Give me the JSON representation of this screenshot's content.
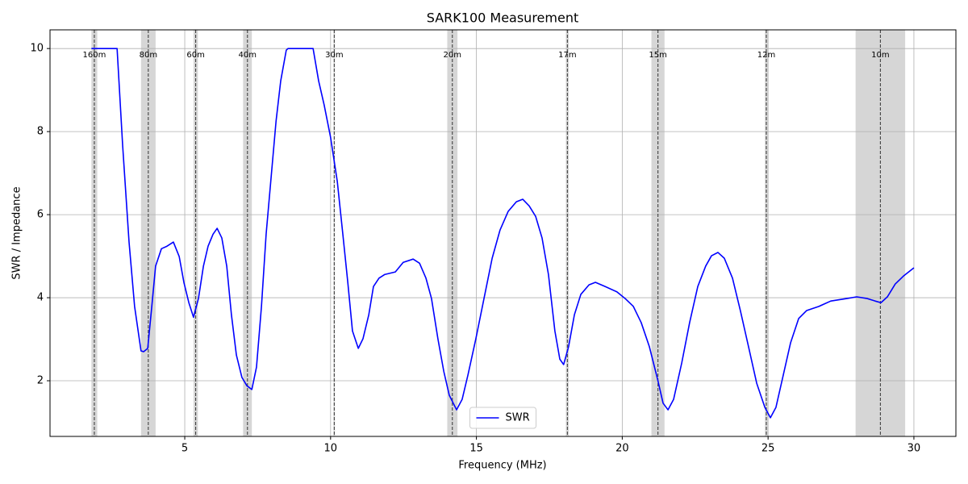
{
  "chart_data": {
    "type": "line",
    "title": "SARK100 Measurement",
    "x_label": "Frequency (MHz)",
    "y_label": "SWR / Impedance",
    "xlim": [
      0.38,
      31.44
    ],
    "ylim": [
      0.66,
      10.45
    ],
    "xticks": [
      5,
      10,
      15,
      20,
      25,
      30
    ],
    "yticks": [
      2,
      4,
      6,
      8,
      10
    ],
    "grid": true,
    "legend": "lower center",
    "bands": [
      {
        "name": "160m",
        "lo": 1.8,
        "hi": 2.0
      },
      {
        "name": "80m",
        "lo": 3.5,
        "hi": 4.0
      },
      {
        "name": "60m",
        "lo": 5.3,
        "hi": 5.45
      },
      {
        "name": "40m",
        "lo": 7.0,
        "hi": 7.3
      },
      {
        "name": "30m",
        "lo": 10.1,
        "hi": 10.15
      },
      {
        "name": "20m",
        "lo": 14.0,
        "hi": 14.35
      },
      {
        "name": "17m",
        "lo": 18.068,
        "hi": 18.168
      },
      {
        "name": "15m",
        "lo": 21.0,
        "hi": 21.45
      },
      {
        "name": "12m",
        "lo": 24.89,
        "hi": 24.99
      },
      {
        "name": "10m",
        "lo": 28.0,
        "hi": 29.7
      }
    ],
    "x": [
      1.8,
      2.68,
      2.87,
      3.09,
      3.28,
      3.5,
      3.59,
      3.73,
      3.87,
      4.0,
      4.2,
      4.39,
      4.61,
      4.81,
      4.97,
      5.14,
      5.3,
      5.47,
      5.64,
      5.8,
      5.97,
      6.11,
      6.27,
      6.44,
      6.6,
      6.77,
      6.96,
      7.13,
      7.3,
      7.46,
      7.63,
      7.79,
      7.96,
      8.13,
      8.29,
      8.48,
      8.54,
      9.4,
      9.59,
      9.78,
      10.0,
      10.23,
      10.42,
      10.59,
      10.75,
      10.95,
      11.11,
      11.31,
      11.47,
      11.66,
      11.86,
      12.22,
      12.49,
      12.83,
      13.05,
      13.27,
      13.46,
      13.68,
      13.88,
      14.07,
      14.32,
      14.51,
      14.71,
      14.98,
      15.26,
      15.54,
      15.81,
      16.09,
      16.37,
      16.59,
      16.81,
      17.03,
      17.25,
      17.47,
      17.69,
      17.86,
      17.99,
      18.16,
      18.36,
      18.58,
      18.86,
      19.08,
      19.41,
      19.82,
      20.1,
      20.38,
      20.65,
      20.93,
      21.21,
      21.4,
      21.57,
      21.76,
      22.04,
      22.31,
      22.59,
      22.86,
      23.06,
      23.28,
      23.5,
      23.78,
      24.05,
      24.33,
      24.61,
      24.89,
      25.08,
      25.27,
      25.49,
      25.77,
      26.05,
      26.32,
      26.74,
      27.15,
      27.7,
      28.04,
      28.4,
      28.67,
      28.87,
      29.09,
      29.36,
      29.64,
      30.0
    ],
    "series": [
      {
        "name": "SWR",
        "color": "#0000ff",
        "values": [
          10,
          10,
          7.67,
          5.34,
          3.79,
          2.72,
          2.7,
          2.78,
          3.79,
          4.76,
          5.18,
          5.24,
          5.34,
          4.99,
          4.37,
          3.88,
          3.53,
          3.98,
          4.76,
          5.24,
          5.53,
          5.67,
          5.44,
          4.76,
          3.59,
          2.62,
          2.08,
          1.88,
          1.79,
          2.33,
          3.79,
          5.53,
          6.89,
          8.25,
          9.22,
          9.96,
          10,
          10,
          9.22,
          8.64,
          7.86,
          6.8,
          5.53,
          4.37,
          3.2,
          2.78,
          3.01,
          3.59,
          4.27,
          4.47,
          4.56,
          4.62,
          4.85,
          4.93,
          4.83,
          4.47,
          3.98,
          3.01,
          2.23,
          1.65,
          1.3,
          1.55,
          2.14,
          3.01,
          3.98,
          4.95,
          5.63,
          6.08,
          6.31,
          6.37,
          6.21,
          5.96,
          5.44,
          4.56,
          3.2,
          2.52,
          2.39,
          2.82,
          3.59,
          4.08,
          4.31,
          4.37,
          4.27,
          4.14,
          3.98,
          3.79,
          3.4,
          2.82,
          2.04,
          1.46,
          1.3,
          1.55,
          2.43,
          3.4,
          4.27,
          4.76,
          5.01,
          5.09,
          4.95,
          4.47,
          3.69,
          2.82,
          1.94,
          1.36,
          1.11,
          1.36,
          2.04,
          2.91,
          3.5,
          3.69,
          3.79,
          3.92,
          3.98,
          4.02,
          3.98,
          3.92,
          3.88,
          4.02,
          4.33,
          4.52,
          4.72
        ]
      }
    ]
  }
}
